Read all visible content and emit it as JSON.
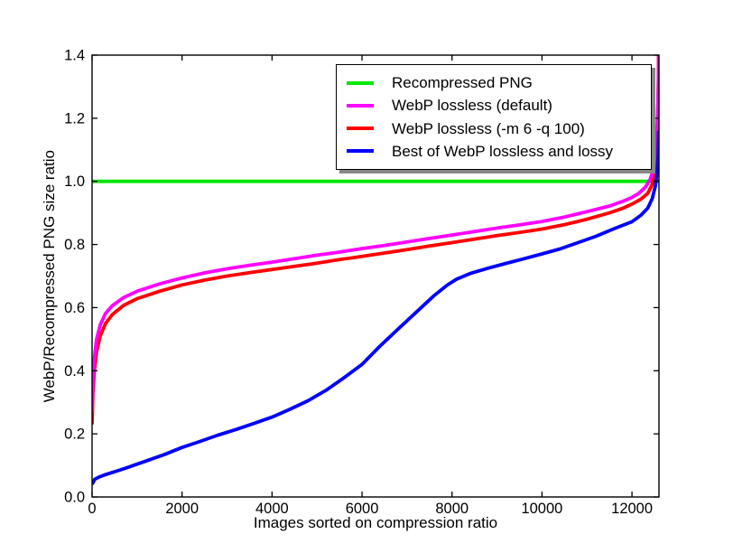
{
  "figure": {
    "background": "#ffffff",
    "axis_color": "#000000"
  },
  "chart_data": {
    "type": "line",
    "title": "",
    "xlabel": "Images sorted on compression ratio",
    "ylabel": "WebP/Recompressed PNG size ratio",
    "xlim": [
      0,
      12600
    ],
    "ylim": [
      0.0,
      1.4
    ],
    "xticks": [
      0,
      2000,
      4000,
      6000,
      8000,
      10000,
      12000
    ],
    "xtick_labels": [
      "0",
      "2000",
      "4000",
      "6000",
      "8000",
      "10000",
      "12000"
    ],
    "yticks": [
      0.0,
      0.2,
      0.4,
      0.6,
      0.8,
      1.0,
      1.2,
      1.4
    ],
    "ytick_labels": [
      "0.0",
      "0.2",
      "0.4",
      "0.6",
      "0.8",
      "1.0",
      "1.2",
      "1.4"
    ],
    "grid": false,
    "tick_direction": "in",
    "legend_position": "upper right inside",
    "series": [
      {
        "name": "Recompressed PNG",
        "color": "#00e600",
        "points": [
          [
            0,
            1.0
          ],
          [
            12600,
            1.0
          ]
        ]
      },
      {
        "name": "WebP lossless (-m 6 -q 100)",
        "color": "#ff0000",
        "points": [
          [
            0,
            0.23
          ],
          [
            20,
            0.33
          ],
          [
            50,
            0.4
          ],
          [
            100,
            0.46
          ],
          [
            180,
            0.51
          ],
          [
            300,
            0.55
          ],
          [
            450,
            0.578
          ],
          [
            700,
            0.607
          ],
          [
            1000,
            0.628
          ],
          [
            1500,
            0.652
          ],
          [
            2000,
            0.672
          ],
          [
            2500,
            0.687
          ],
          [
            3000,
            0.7
          ],
          [
            3500,
            0.711
          ],
          [
            4000,
            0.721
          ],
          [
            4500,
            0.731
          ],
          [
            5000,
            0.741
          ],
          [
            5500,
            0.752
          ],
          [
            6000,
            0.762
          ],
          [
            6500,
            0.773
          ],
          [
            7000,
            0.784
          ],
          [
            7500,
            0.795
          ],
          [
            8000,
            0.806
          ],
          [
            8500,
            0.817
          ],
          [
            9000,
            0.828
          ],
          [
            9500,
            0.838
          ],
          [
            10000,
            0.849
          ],
          [
            10500,
            0.863
          ],
          [
            11000,
            0.88
          ],
          [
            11500,
            0.9
          ],
          [
            11800,
            0.915
          ],
          [
            12000,
            0.928
          ],
          [
            12200,
            0.944
          ],
          [
            12350,
            0.962
          ],
          [
            12450,
            0.99
          ],
          [
            12500,
            1.02
          ],
          [
            12535,
            1.06
          ],
          [
            12560,
            1.13
          ],
          [
            12575,
            1.22
          ],
          [
            12585,
            1.32
          ],
          [
            12590,
            1.4
          ]
        ]
      },
      {
        "name": "WebP lossless (default)",
        "color": "#ff00ff",
        "points": [
          [
            0,
            0.27
          ],
          [
            20,
            0.37
          ],
          [
            50,
            0.44
          ],
          [
            100,
            0.5
          ],
          [
            180,
            0.545
          ],
          [
            300,
            0.582
          ],
          [
            450,
            0.606
          ],
          [
            700,
            0.632
          ],
          [
            1000,
            0.652
          ],
          [
            1500,
            0.675
          ],
          [
            2000,
            0.694
          ],
          [
            2500,
            0.71
          ],
          [
            3000,
            0.723
          ],
          [
            3500,
            0.734
          ],
          [
            4000,
            0.744
          ],
          [
            4500,
            0.755
          ],
          [
            5000,
            0.766
          ],
          [
            5500,
            0.776
          ],
          [
            6000,
            0.787
          ],
          [
            6500,
            0.797
          ],
          [
            7000,
            0.808
          ],
          [
            7500,
            0.819
          ],
          [
            8000,
            0.83
          ],
          [
            8500,
            0.841
          ],
          [
            9000,
            0.852
          ],
          [
            9500,
            0.862
          ],
          [
            10000,
            0.873
          ],
          [
            10500,
            0.887
          ],
          [
            11000,
            0.904
          ],
          [
            11500,
            0.922
          ],
          [
            11800,
            0.937
          ],
          [
            12000,
            0.949
          ],
          [
            12150,
            0.962
          ],
          [
            12300,
            0.982
          ],
          [
            12400,
            1.005
          ],
          [
            12460,
            1.03
          ],
          [
            12510,
            1.07
          ],
          [
            12545,
            1.13
          ],
          [
            12570,
            1.21
          ],
          [
            12585,
            1.3
          ],
          [
            12593,
            1.4
          ]
        ]
      },
      {
        "name": "Best of WebP lossless and lossy",
        "color": "#0000ff",
        "points": [
          [
            0,
            0.04
          ],
          [
            60,
            0.056
          ],
          [
            150,
            0.063
          ],
          [
            300,
            0.071
          ],
          [
            500,
            0.08
          ],
          [
            800,
            0.094
          ],
          [
            1000,
            0.104
          ],
          [
            1300,
            0.119
          ],
          [
            1600,
            0.134
          ],
          [
            2000,
            0.157
          ],
          [
            2400,
            0.176
          ],
          [
            2800,
            0.196
          ],
          [
            3200,
            0.214
          ],
          [
            3600,
            0.233
          ],
          [
            4000,
            0.253
          ],
          [
            4400,
            0.278
          ],
          [
            4800,
            0.305
          ],
          [
            5200,
            0.338
          ],
          [
            5600,
            0.378
          ],
          [
            6000,
            0.42
          ],
          [
            6400,
            0.478
          ],
          [
            6800,
            0.532
          ],
          [
            7200,
            0.585
          ],
          [
            7600,
            0.638
          ],
          [
            7900,
            0.672
          ],
          [
            8100,
            0.69
          ],
          [
            8400,
            0.708
          ],
          [
            8800,
            0.725
          ],
          [
            9200,
            0.74
          ],
          [
            9600,
            0.755
          ],
          [
            10000,
            0.77
          ],
          [
            10400,
            0.786
          ],
          [
            10800,
            0.806
          ],
          [
            11200,
            0.826
          ],
          [
            11600,
            0.85
          ],
          [
            12000,
            0.872
          ],
          [
            12200,
            0.893
          ],
          [
            12350,
            0.915
          ],
          [
            12450,
            0.945
          ],
          [
            12520,
            0.985
          ],
          [
            12560,
            1.03
          ],
          [
            12580,
            1.08
          ],
          [
            12592,
            1.16
          ]
        ]
      }
    ]
  },
  "legend": {
    "items": [
      {
        "label": "Recompressed PNG",
        "color": "#00e600"
      },
      {
        "label": "WebP lossless (default)",
        "color": "#ff00ff"
      },
      {
        "label": "WebP lossless (-m 6 -q 100)",
        "color": "#ff0000"
      },
      {
        "label": "Best of WebP lossless and lossy",
        "color": "#0000ff"
      }
    ]
  }
}
